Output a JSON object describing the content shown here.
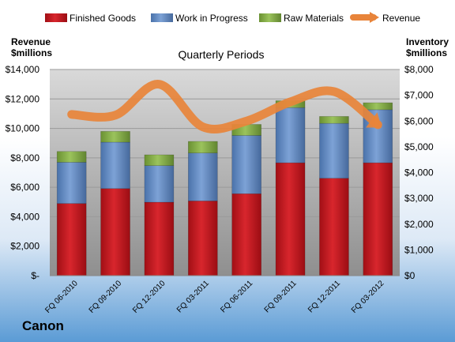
{
  "company": "Canon",
  "colors": {
    "finished_goods": "#c0141b",
    "work_in_progress": "#5b86c2",
    "raw_materials": "#7fa843",
    "revenue": "#e8843a",
    "plot_bg_top": "#d7d7d7",
    "plot_bg_bottom": "#8c8c8c"
  },
  "chart_data": {
    "type": "bar",
    "stacked": true,
    "title": "Quarterly Periods",
    "left_axis_label": [
      "Revenue",
      "$millions"
    ],
    "right_axis_label": [
      "Inventory",
      "$millions"
    ],
    "categories": [
      "FQ 06-2010",
      "FQ 09-2010",
      "FQ 12-2010",
      "FQ 03-2011",
      "FQ 06-2011",
      "FQ 09-2011",
      "FQ 12-2011",
      "FQ 03-2012"
    ],
    "left_ylim": [
      0,
      14000
    ],
    "right_ylim": [
      0,
      8000
    ],
    "left_ticks": [
      "$-",
      "$2,000",
      "$4,000",
      "$6,000",
      "$8,000",
      "$10,000",
      "$12,000",
      "$14,000"
    ],
    "right_ticks": [
      "$0",
      "$1,000",
      "$2,000",
      "$3,000",
      "$4,000",
      "$5,000",
      "$6,000",
      "$7,000",
      "$8,000"
    ],
    "legend_position": "top",
    "series": [
      {
        "name": "Finished Goods",
        "axis": "right",
        "values": [
          2800,
          3380,
          2850,
          2900,
          3180,
          4380,
          3780,
          4380
        ]
      },
      {
        "name": "Work in Progress",
        "axis": "right",
        "values": [
          1600,
          1800,
          1420,
          1860,
          2260,
          2140,
          2130,
          2060
        ]
      },
      {
        "name": "Raw Materials",
        "axis": "right",
        "values": [
          420,
          420,
          420,
          450,
          430,
          270,
          270,
          270
        ]
      },
      {
        "name": "Revenue",
        "axis": "left",
        "type": "line",
        "values": [
          10950,
          10900,
          13000,
          10100,
          10500,
          11800,
          12500,
          10250
        ]
      }
    ]
  }
}
